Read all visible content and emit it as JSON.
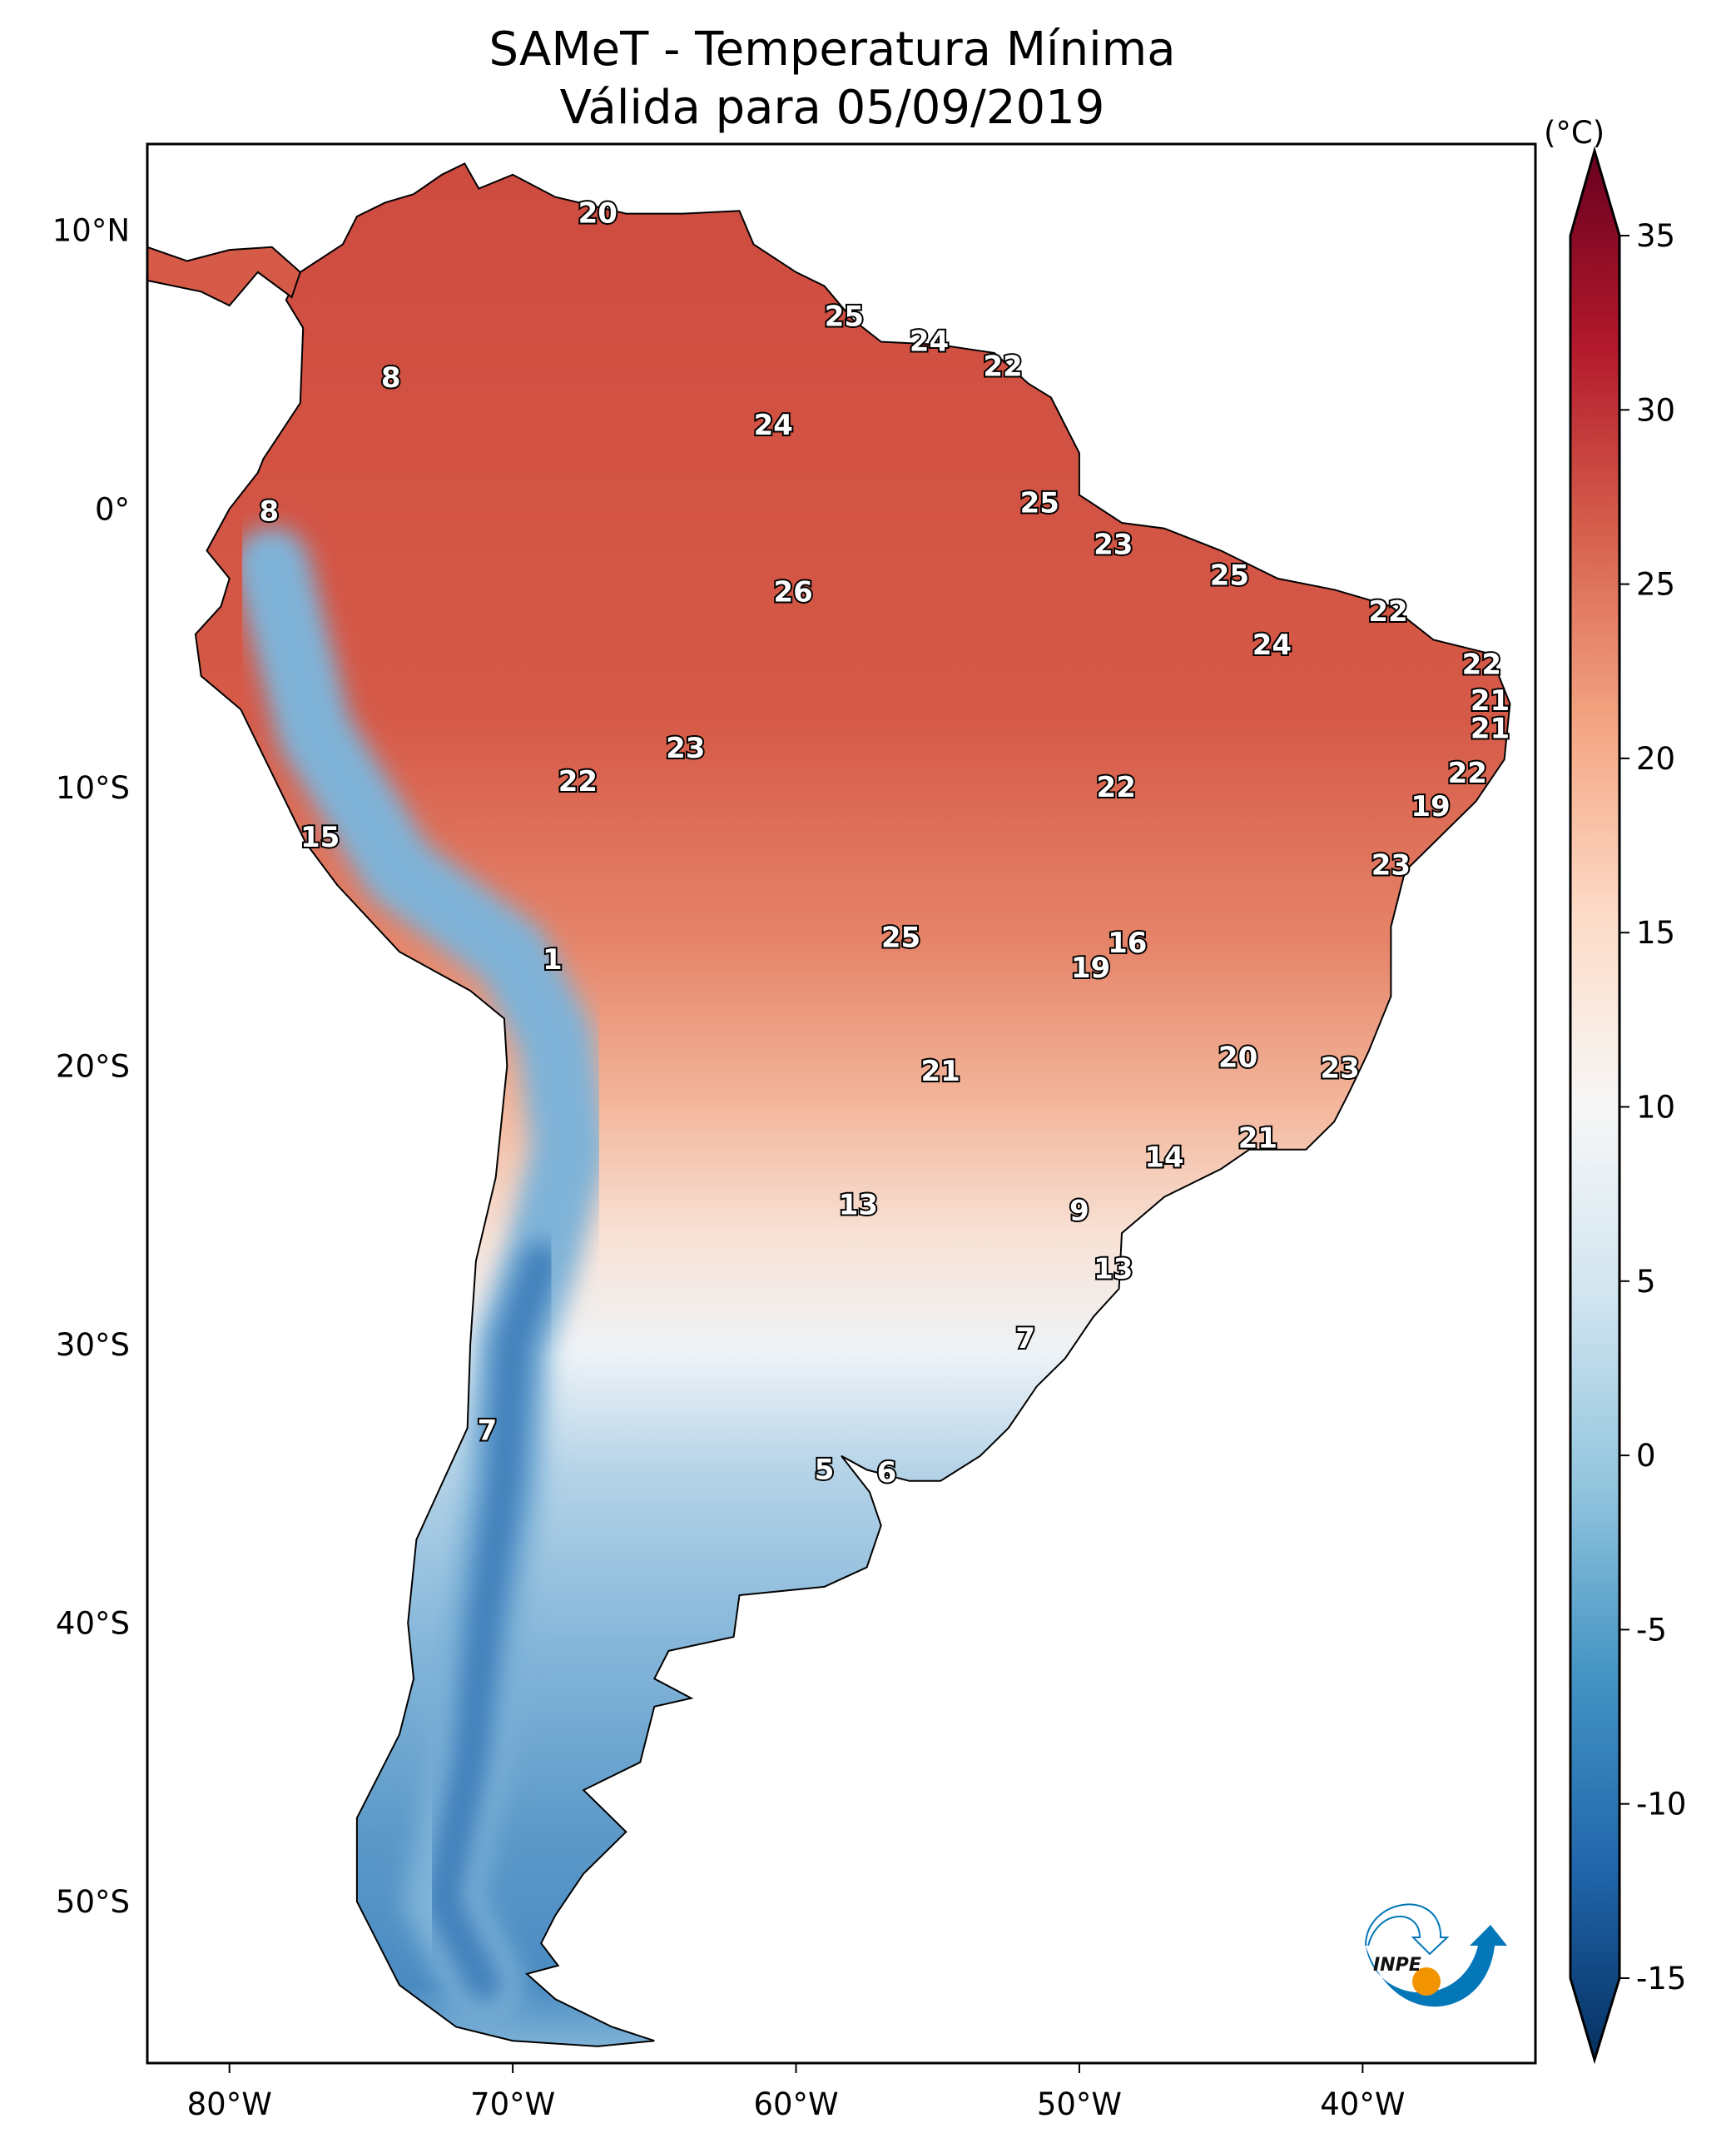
{
  "title": {
    "line1": "SAMeT - Temperatura Mínima",
    "line2": "Válida para 05/09/2019"
  },
  "colorbar": {
    "unit_label": "(°C)",
    "min": -15,
    "max": 35,
    "extend": "both",
    "ticks": [
      "35",
      "30",
      "25",
      "20",
      "15",
      "10",
      "5",
      "0",
      "-5",
      "-10",
      "-15"
    ],
    "tick_values": [
      35,
      30,
      25,
      20,
      15,
      10,
      5,
      0,
      -5,
      -10,
      -15
    ],
    "colormap": "RdBu_r",
    "colors": [
      "#053061",
      "#2166ac",
      "#4393c3",
      "#92c5de",
      "#d1e5f0",
      "#f7f7f7",
      "#fddbc7",
      "#f4a582",
      "#d6604d",
      "#b2182b",
      "#67001f"
    ]
  },
  "axes": {
    "lon_range": [
      -82.9,
      -33.9
    ],
    "lat_range": [
      -55.8,
      13.1
    ],
    "lon_ticks": [
      {
        "value": -80,
        "label": "80°W"
      },
      {
        "value": -70,
        "label": "70°W"
      },
      {
        "value": -60,
        "label": "60°W"
      },
      {
        "value": -50,
        "label": "50°W"
      },
      {
        "value": -40,
        "label": "40°W"
      }
    ],
    "lat_ticks": [
      {
        "value": 10,
        "label": "10°N"
      },
      {
        "value": 0,
        "label": "0°"
      },
      {
        "value": -10,
        "label": "10°S"
      },
      {
        "value": -20,
        "label": "20°S"
      },
      {
        "value": -30,
        "label": "30°S"
      },
      {
        "value": -40,
        "label": "40°S"
      },
      {
        "value": -50,
        "label": "50°S"
      }
    ]
  },
  "labels": [
    {
      "text": "20",
      "lon": -67.0,
      "lat": 10.6
    },
    {
      "text": "25",
      "lon": -58.3,
      "lat": 6.9
    },
    {
      "text": "24",
      "lon": -55.3,
      "lat": 6.0
    },
    {
      "text": "22",
      "lon": -52.7,
      "lat": 5.1
    },
    {
      "text": "8",
      "lon": -74.3,
      "lat": 4.7
    },
    {
      "text": "24",
      "lon": -60.8,
      "lat": 3.0
    },
    {
      "text": "8",
      "lon": -78.6,
      "lat": -0.1
    },
    {
      "text": "25",
      "lon": -51.4,
      "lat": 0.2
    },
    {
      "text": "23",
      "lon": -48.8,
      "lat": -1.3
    },
    {
      "text": "25",
      "lon": -44.7,
      "lat": -2.4
    },
    {
      "text": "26",
      "lon": -60.1,
      "lat": -3.0
    },
    {
      "text": "22",
      "lon": -39.1,
      "lat": -3.7
    },
    {
      "text": "24",
      "lon": -43.2,
      "lat": -4.9
    },
    {
      "text": "22",
      "lon": -35.8,
      "lat": -5.6
    },
    {
      "text": "21",
      "lon": -35.5,
      "lat": -6.9
    },
    {
      "text": "21",
      "lon": -35.5,
      "lat": -7.9
    },
    {
      "text": "23",
      "lon": -63.9,
      "lat": -8.6
    },
    {
      "text": "22",
      "lon": -36.3,
      "lat": -9.5
    },
    {
      "text": "22",
      "lon": -67.7,
      "lat": -9.8
    },
    {
      "text": "22",
      "lon": -48.7,
      "lat": -10.0
    },
    {
      "text": "19",
      "lon": -37.6,
      "lat": -10.7
    },
    {
      "text": "15",
      "lon": -76.8,
      "lat": -11.8
    },
    {
      "text": "23",
      "lon": -39.0,
      "lat": -12.8
    },
    {
      "text": "25",
      "lon": -56.3,
      "lat": -15.4
    },
    {
      "text": "16",
      "lon": -48.3,
      "lat": -15.6
    },
    {
      "text": "1",
      "lon": -68.6,
      "lat": -16.2
    },
    {
      "text": "19",
      "lon": -49.6,
      "lat": -16.5
    },
    {
      "text": "20",
      "lon": -44.4,
      "lat": -19.7
    },
    {
      "text": "23",
      "lon": -40.8,
      "lat": -20.1
    },
    {
      "text": "21",
      "lon": -54.9,
      "lat": -20.2
    },
    {
      "text": "21",
      "lon": -43.7,
      "lat": -22.6
    },
    {
      "text": "14",
      "lon": -47.0,
      "lat": -23.3
    },
    {
      "text": "13",
      "lon": -57.8,
      "lat": -25.0
    },
    {
      "text": "9",
      "lon": -50.0,
      "lat": -25.2
    },
    {
      "text": "13",
      "lon": -48.8,
      "lat": -27.3
    },
    {
      "text": "7",
      "lon": -51.9,
      "lat": -29.8
    },
    {
      "text": "7",
      "lon": -70.9,
      "lat": -33.1
    },
    {
      "text": "5",
      "lon": -59.0,
      "lat": -34.5
    },
    {
      "text": "6",
      "lon": -56.8,
      "lat": -34.6
    }
  ],
  "logo": {
    "text": "INPE",
    "blue": "#0477b8",
    "orange": "#f29400"
  }
}
